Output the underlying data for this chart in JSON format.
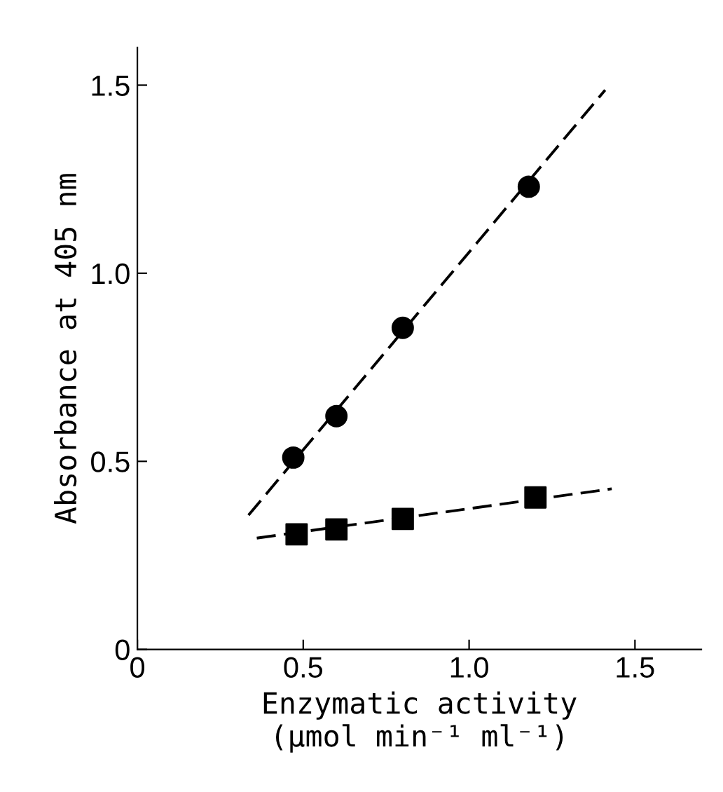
{
  "chart_data": {
    "type": "scatter",
    "xlabel": "Enzymatic activity\n(μmol min⁻¹ ml⁻¹)",
    "ylabel": "Absorbance at 405 nm",
    "xlim": [
      0,
      1.7
    ],
    "ylim": [
      0,
      1.6
    ],
    "xticks": [
      {
        "value": 0,
        "label": "0"
      },
      {
        "value": 0.5,
        "label": "0.5"
      },
      {
        "value": 1.0,
        "label": "1.0"
      },
      {
        "value": 1.5,
        "label": "1.5"
      }
    ],
    "yticks": [
      {
        "value": 0,
        "label": "0"
      },
      {
        "value": 0.5,
        "label": "0.5"
      },
      {
        "value": 1.0,
        "label": "1.0"
      },
      {
        "value": 1.5,
        "label": "1.5"
      }
    ],
    "grid": false,
    "legend": false,
    "series": [
      {
        "type": "line",
        "line_style": "dashed",
        "marker": "none",
        "color": "#000000",
        "x": [
          0.335,
          1.41
        ],
        "values": [
          0.357,
          1.487
        ]
      },
      {
        "type": "line",
        "line_style": "dashed",
        "marker": "none",
        "color": "#000000",
        "x": [
          0.36,
          1.43
        ],
        "values": [
          0.296,
          0.427
        ]
      },
      {
        "marker": "circle",
        "color": "#000000",
        "x": [
          0.47,
          0.6,
          0.8,
          1.18
        ],
        "values": [
          0.51,
          0.62,
          0.855,
          1.23
        ]
      },
      {
        "marker": "square",
        "color": "#000000",
        "x": [
          0.48,
          0.6,
          0.8,
          1.2
        ],
        "values": [
          0.306,
          0.319,
          0.347,
          0.404
        ]
      }
    ]
  }
}
